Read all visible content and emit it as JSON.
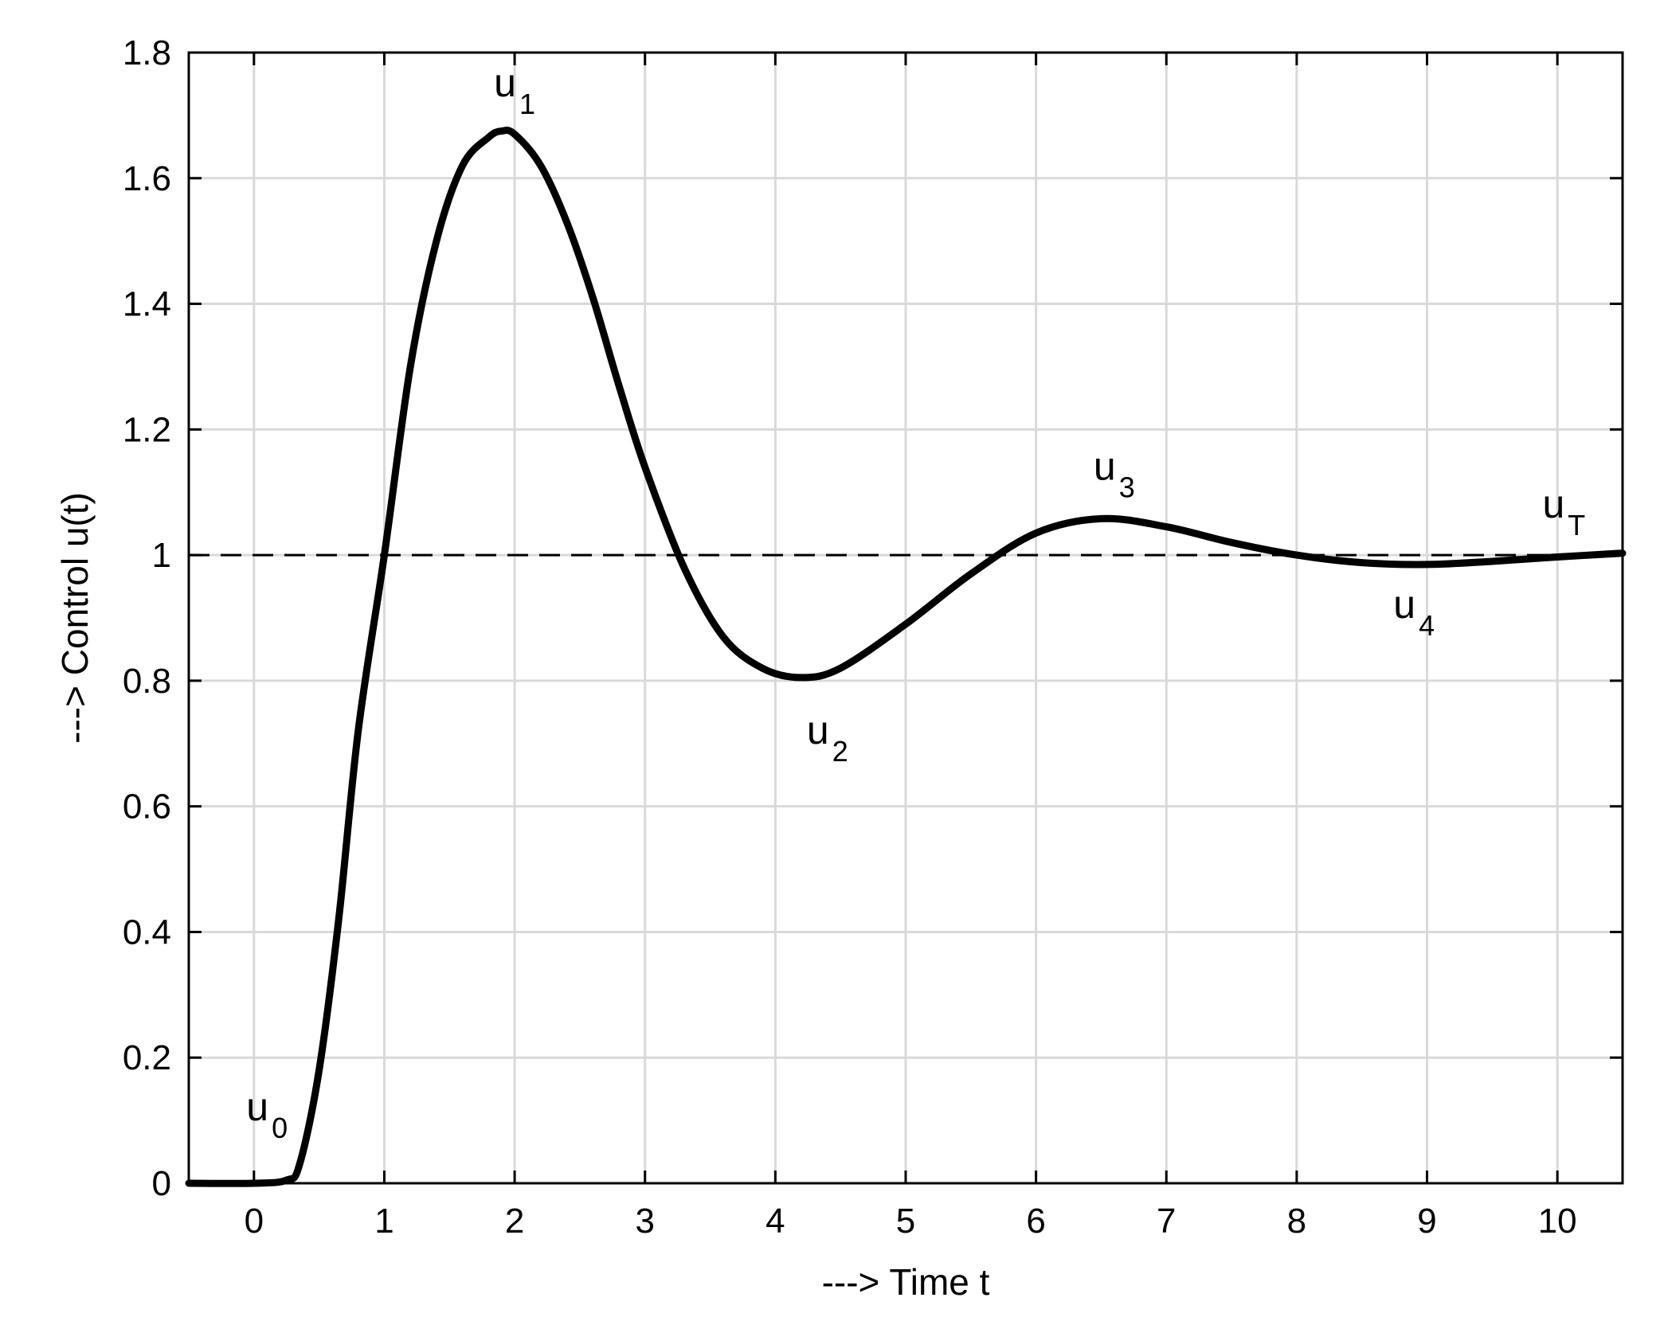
{
  "chart_data": {
    "type": "line",
    "title": "",
    "xlabel": "---> Time t",
    "ylabel": "---> Control u(t)",
    "xlim": [
      -0.5,
      10.5
    ],
    "ylim": [
      0,
      1.8
    ],
    "xticks": [
      0,
      1,
      2,
      3,
      4,
      5,
      6,
      7,
      8,
      9,
      10
    ],
    "xtick_labels": [
      "0",
      "1",
      "2",
      "3",
      "4",
      "5",
      "6",
      "7",
      "8",
      "9",
      "10"
    ],
    "yticks": [
      0,
      0.2,
      0.4,
      0.6,
      0.8,
      1,
      1.2,
      1.4,
      1.6,
      1.8
    ],
    "ytick_labels": [
      "0",
      "0.2",
      "0.4",
      "0.6",
      "0.8",
      "1",
      "1.2",
      "1.4",
      "1.6",
      "1.8"
    ],
    "grid": true,
    "legend": "none",
    "reference_line": {
      "y": 1,
      "style": "dashed"
    },
    "series": [
      {
        "color": "#000000",
        "x": [
          -0.5,
          0.0,
          0.25,
          0.35,
          0.5,
          0.65,
          0.8,
          1.0,
          1.2,
          1.4,
          1.6,
          1.8,
          1.9,
          2.0,
          2.2,
          2.4,
          2.6,
          2.8,
          3.0,
          3.3,
          3.6,
          3.9,
          4.2,
          4.5,
          5.0,
          5.5,
          6.0,
          6.5,
          7.0,
          7.5,
          8.0,
          8.5,
          9.0,
          9.5,
          10.0,
          10.5
        ],
        "y": [
          0.0,
          0.0,
          0.005,
          0.03,
          0.18,
          0.42,
          0.72,
          1.0,
          1.3,
          1.5,
          1.62,
          1.665,
          1.675,
          1.67,
          1.62,
          1.53,
          1.41,
          1.27,
          1.14,
          0.98,
          0.87,
          0.82,
          0.805,
          0.82,
          0.89,
          0.97,
          1.035,
          1.058,
          1.045,
          1.02,
          1.0,
          0.988,
          0.985,
          0.99,
          0.997,
          1.003
        ]
      }
    ],
    "annotations": [
      {
        "main": "u",
        "sub": "0",
        "x": 0.1,
        "y": 0.1
      },
      {
        "main": "u",
        "sub": "1",
        "x": 2.0,
        "y": 1.73
      },
      {
        "main": "u",
        "sub": "2",
        "x": 4.4,
        "y": 0.7
      },
      {
        "main": "u",
        "sub": "3",
        "x": 6.6,
        "y": 1.12
      },
      {
        "main": "u",
        "sub": "4",
        "x": 8.9,
        "y": 0.9
      },
      {
        "main": "u",
        "sub": "T",
        "x": 10.05,
        "y": 1.06
      }
    ]
  }
}
